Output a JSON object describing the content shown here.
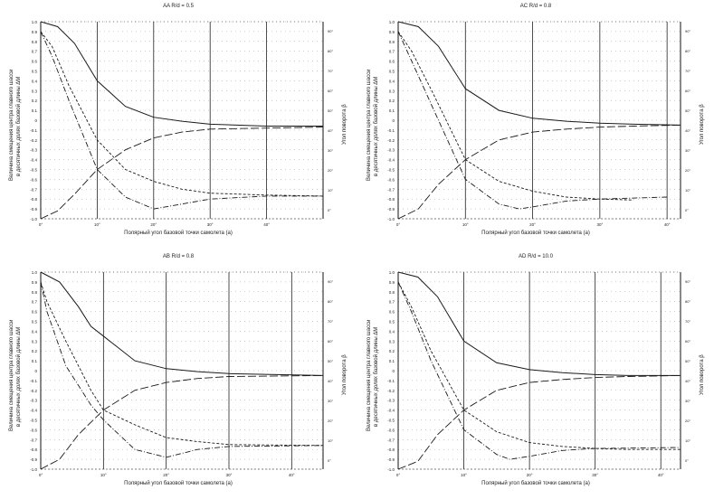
{
  "chart_data": [
    {
      "type": "line",
      "title_prefix": "AA",
      "title_ratio": "R/d",
      "title_value": "= 0.5",
      "xlabel": "Полярный угол базовой точки самолета (a)",
      "ylabel_line1": "Величина смещения центра главного шасси",
      "ylabel_line2": "в десятичных долях базовой длины ΔM",
      "y2label": "Угол поворота β",
      "x_ticks": [
        "0°",
        "10°",
        "20°",
        "30°",
        "40°"
      ],
      "xlim": [
        0,
        50
      ],
      "y_ticks": [
        "1.0",
        "0.9",
        "0.8",
        "0.7",
        "0.6",
        "0.5",
        "0.4",
        "0.3",
        "0.2",
        "0.1",
        "0",
        "-0.1",
        "-0.2",
        "-0.3",
        "-0.4",
        "-0.5",
        "-0.6",
        "-0.7",
        "-0.8",
        "-0.9",
        "-1.0"
      ],
      "ylim": [
        -1,
        1
      ],
      "y2_ticks": [
        "90°",
        "80°",
        "70°",
        "60°",
        "50°",
        "40°",
        "30°",
        "20°",
        "10°",
        "0°"
      ],
      "series": [
        {
          "name": "solid",
          "style": "solid",
          "x": [
            0,
            3,
            6,
            10,
            15,
            20,
            25,
            30,
            40,
            50
          ],
          "y": [
            1.0,
            0.95,
            0.78,
            0.4,
            0.14,
            0.03,
            -0.01,
            -0.04,
            -0.06,
            -0.06
          ]
        },
        {
          "name": "long-dash",
          "style": "longdash",
          "x": [
            0,
            3,
            6,
            10,
            15,
            20,
            25,
            30,
            40,
            50
          ],
          "y": [
            -1.0,
            -0.92,
            -0.75,
            -0.5,
            -0.3,
            -0.18,
            -0.12,
            -0.09,
            -0.08,
            -0.07
          ]
        },
        {
          "name": "short-dash",
          "style": "shortdash",
          "x": [
            0,
            2,
            5,
            10,
            15,
            20,
            25,
            30,
            40,
            50
          ],
          "y": [
            0.9,
            0.75,
            0.35,
            -0.2,
            -0.5,
            -0.62,
            -0.7,
            -0.74,
            -0.76,
            -0.77
          ]
        },
        {
          "name": "dash-dot",
          "style": "dashdot",
          "x": [
            0,
            2,
            5,
            10,
            15,
            20,
            25,
            30,
            40,
            50
          ],
          "y": [
            0.9,
            0.65,
            0.2,
            -0.5,
            -0.78,
            -0.9,
            -0.85,
            -0.8,
            -0.77,
            -0.77
          ]
        }
      ]
    },
    {
      "type": "line",
      "title_prefix": "AC",
      "title_ratio": "R/d",
      "title_value": "= 0.8",
      "xlabel": "Полярный угол базовой точки самолета (a)",
      "ylabel_line1": "Величина смещения центра главного шасси",
      "ylabel_line2": "в десятичных долях базовой длины ΔM",
      "y2label": "Угол поворота β",
      "x_ticks": [
        "0°",
        "10°",
        "20°",
        "30°",
        "40°"
      ],
      "xlim": [
        0,
        42
      ],
      "y_ticks": [
        "1.0",
        "0.9",
        "0.8",
        "0.7",
        "0.6",
        "0.5",
        "0.4",
        "0.3",
        "0.2",
        "0.1",
        "0",
        "-0.1",
        "-0.2",
        "-0.3",
        "-0.4",
        "-0.5",
        "-0.6",
        "-0.7",
        "-0.8",
        "-0.9",
        "-1.0"
      ],
      "ylim": [
        -1,
        1
      ],
      "y2_ticks": [
        "90°",
        "80°",
        "70°",
        "60°",
        "50°",
        "40°",
        "30°",
        "20°",
        "10°",
        "0°"
      ],
      "series": [
        {
          "name": "solid",
          "style": "solid",
          "x": [
            0,
            3,
            6,
            10,
            15,
            20,
            25,
            30,
            35,
            42
          ],
          "y": [
            1.0,
            0.95,
            0.75,
            0.32,
            0.1,
            0.02,
            -0.01,
            -0.03,
            -0.04,
            -0.05
          ]
        },
        {
          "name": "long-dash",
          "style": "longdash",
          "x": [
            0,
            3,
            6,
            10,
            15,
            20,
            25,
            30,
            35,
            42
          ],
          "y": [
            -1.0,
            -0.9,
            -0.65,
            -0.4,
            -0.2,
            -0.12,
            -0.09,
            -0.07,
            -0.06,
            -0.05
          ]
        },
        {
          "name": "short-dash",
          "style": "shortdash",
          "x": [
            0,
            2,
            5,
            10,
            15,
            20,
            25,
            30,
            35
          ],
          "y": [
            0.9,
            0.7,
            0.3,
            -0.4,
            -0.62,
            -0.72,
            -0.78,
            -0.8,
            -0.81
          ]
        },
        {
          "name": "dash-dot",
          "style": "dashdot",
          "x": [
            0,
            2,
            5,
            10,
            15,
            18,
            20,
            25,
            30,
            40
          ],
          "y": [
            0.9,
            0.6,
            0.15,
            -0.6,
            -0.85,
            -0.9,
            -0.88,
            -0.82,
            -0.8,
            -0.78
          ]
        }
      ]
    },
    {
      "type": "line",
      "title_prefix": "AB",
      "title_ratio": "R/d",
      "title_value": "= 0.8",
      "xlabel": "Полярный угол базовой точки самолета (a)",
      "ylabel_line1": "Величина смещения центра главного шасси",
      "ylabel_line2": "в десятичных долях базовой длины ΔM",
      "y2label": "Угол поворота β",
      "x_ticks": [
        "0°",
        "10°",
        "20°",
        "30°",
        "40°"
      ],
      "xlim": [
        0,
        45
      ],
      "y_ticks": [
        "1.0",
        "0.9",
        "0.8",
        "0.7",
        "0.6",
        "0.5",
        "0.4",
        "0.3",
        "0.2",
        "0.1",
        "0",
        "-0.1",
        "-0.2",
        "-0.3",
        "-0.4",
        "-0.5",
        "-0.6",
        "-0.7",
        "-0.8",
        "-0.9",
        "-1.0"
      ],
      "ylim": [
        -1,
        1
      ],
      "y2_ticks": [
        "90°",
        "80°",
        "70°",
        "60°",
        "50°",
        "40°",
        "30°",
        "20°",
        "10°",
        "0°"
      ],
      "series": [
        {
          "name": "solid",
          "style": "solid",
          "x": [
            0,
            3,
            6,
            8,
            10,
            15,
            20,
            25,
            30,
            45
          ],
          "y": [
            1.0,
            0.9,
            0.65,
            0.45,
            0.35,
            0.1,
            0.02,
            -0.01,
            -0.03,
            -0.05
          ]
        },
        {
          "name": "long-dash",
          "style": "longdash",
          "x": [
            0,
            3,
            6,
            10,
            15,
            20,
            25,
            30,
            45
          ],
          "y": [
            -1.0,
            -0.9,
            -0.65,
            -0.4,
            -0.2,
            -0.12,
            -0.08,
            -0.06,
            -0.05
          ]
        },
        {
          "name": "short-dash",
          "style": "shortdash",
          "x": [
            0,
            1,
            4,
            8,
            10,
            15,
            20,
            25,
            30,
            45
          ],
          "y": [
            0.9,
            0.7,
            0.3,
            -0.2,
            -0.4,
            -0.55,
            -0.68,
            -0.72,
            -0.75,
            -0.76
          ]
        },
        {
          "name": "dash-dot",
          "style": "dashdot",
          "x": [
            0,
            1,
            4,
            8,
            10,
            15,
            20,
            25,
            30,
            45
          ],
          "y": [
            0.9,
            0.6,
            0.05,
            -0.35,
            -0.5,
            -0.8,
            -0.88,
            -0.8,
            -0.77,
            -0.76
          ]
        }
      ]
    },
    {
      "type": "line",
      "title_prefix": "AD",
      "title_ratio": "R/d",
      "title_value": "= 10.0",
      "xlabel": "Полярный угол базовой точки самолета (a)",
      "ylabel_line1": "Величина смещения центра главного шасси",
      "ylabel_line2": "в десятичных долях базовой длины ΔM",
      "y2label": "Угол поворота β",
      "x_ticks": [
        "0°",
        "10°",
        "20°",
        "30°",
        "40°"
      ],
      "xlim": [
        0,
        43
      ],
      "y_ticks": [
        "1.0",
        "0.9",
        "0.8",
        "0.7",
        "0.6",
        "0.5",
        "0.4",
        "0.3",
        "0.2",
        "0.1",
        "0",
        "-0.1",
        "-0.2",
        "-0.3",
        "-0.4",
        "-0.5",
        "-0.6",
        "-0.7",
        "-0.8",
        "-0.9",
        "-1.0"
      ],
      "ylim": [
        -1,
        1
      ],
      "y2_ticks": [
        "90°",
        "80°",
        "70°",
        "60°",
        "50°",
        "40°",
        "30°",
        "20°",
        "10°",
        "0°"
      ],
      "series": [
        {
          "name": "solid",
          "style": "solid",
          "x": [
            0,
            3,
            6,
            10,
            15,
            20,
            25,
            30,
            35,
            43
          ],
          "y": [
            1.0,
            0.95,
            0.75,
            0.3,
            0.08,
            0.01,
            -0.02,
            -0.04,
            -0.05,
            -0.05
          ]
        },
        {
          "name": "long-dash",
          "style": "longdash",
          "x": [
            0,
            3,
            6,
            10,
            15,
            20,
            25,
            30,
            35,
            43
          ],
          "y": [
            -1.0,
            -0.92,
            -0.65,
            -0.4,
            -0.2,
            -0.12,
            -0.09,
            -0.07,
            -0.06,
            -0.05
          ]
        },
        {
          "name": "short-dash",
          "style": "shortdash",
          "x": [
            0,
            2,
            5,
            10,
            15,
            20,
            25,
            30,
            35,
            43
          ],
          "y": [
            0.9,
            0.65,
            0.2,
            -0.4,
            -0.62,
            -0.73,
            -0.77,
            -0.79,
            -0.8,
            -0.8
          ]
        },
        {
          "name": "dash-dot",
          "style": "dashdot",
          "x": [
            0,
            2,
            5,
            10,
            15,
            17,
            20,
            25,
            30,
            43
          ],
          "y": [
            0.9,
            0.6,
            0.1,
            -0.6,
            -0.85,
            -0.9,
            -0.87,
            -0.81,
            -0.79,
            -0.78
          ]
        }
      ]
    }
  ],
  "colors": {
    "line": "#1a1a1a",
    "grid": "#888888",
    "axis": "#111111"
  }
}
